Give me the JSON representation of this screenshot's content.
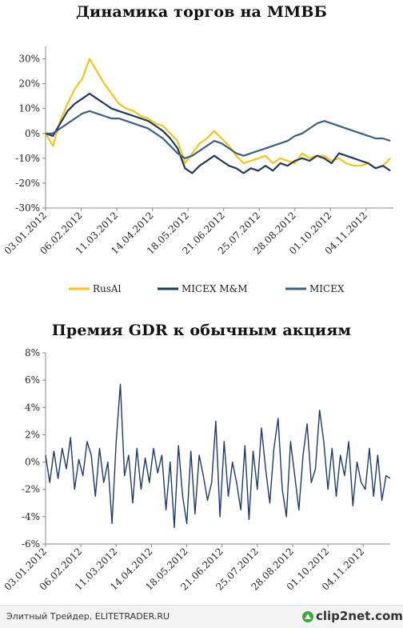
{
  "chart_data": [
    {
      "type": "line",
      "title": "Динамика торгов на ММВБ",
      "x_ticks": [
        "03.01.2012",
        "06.02.2012",
        "11.03.2012",
        "14.04.2012",
        "18.05.2012",
        "21.06.2012",
        "25.07.2012",
        "28.08.2012",
        "01.10.2012",
        "04.11.2012"
      ],
      "y_ticks": [
        "30%",
        "20%",
        "10%",
        "0%",
        "-10%",
        "-20%",
        "-30%"
      ],
      "ylim": [
        -30,
        35
      ],
      "x_range": [
        "2012-01-03",
        "2012-11-30"
      ],
      "grid": false,
      "legend_position": "bottom",
      "series": [
        {
          "name": "RusAl",
          "color": "#f5c518",
          "x": [
            "2012-01-03",
            "2012-01-10",
            "2012-01-17",
            "2012-01-24",
            "2012-01-31",
            "2012-02-07",
            "2012-02-14",
            "2012-02-21",
            "2012-02-28",
            "2012-03-06",
            "2012-03-13",
            "2012-03-20",
            "2012-03-27",
            "2012-04-03",
            "2012-04-10",
            "2012-04-17",
            "2012-04-24",
            "2012-05-01",
            "2012-05-08",
            "2012-05-15",
            "2012-05-22",
            "2012-05-29",
            "2012-06-05",
            "2012-06-12",
            "2012-06-19",
            "2012-06-26",
            "2012-07-03",
            "2012-07-10",
            "2012-07-17",
            "2012-07-24",
            "2012-07-31",
            "2012-08-07",
            "2012-08-14",
            "2012-08-21",
            "2012-08-28",
            "2012-09-04",
            "2012-09-11",
            "2012-09-18",
            "2012-09-25",
            "2012-10-02",
            "2012-10-09",
            "2012-10-16",
            "2012-10-23",
            "2012-10-30",
            "2012-11-06",
            "2012-11-13",
            "2012-11-20",
            "2012-11-27"
          ],
          "values": [
            0,
            -5,
            5,
            12,
            18,
            22,
            30,
            25,
            20,
            16,
            12,
            10,
            9,
            7,
            6,
            4,
            3,
            0,
            -3,
            -12,
            -8,
            -4,
            -2,
            1,
            -2,
            -5,
            -9,
            -12,
            -11,
            -10,
            -9,
            -12,
            -10,
            -11,
            -12,
            -8,
            -10,
            -9,
            -9,
            -11,
            -10,
            -12,
            -13,
            -13,
            -12,
            -14,
            -13,
            -10
          ]
        },
        {
          "name": "MICEX M&M",
          "color": "#1f3a5a",
          "x": [
            "2012-01-03",
            "2012-01-10",
            "2012-01-17",
            "2012-01-24",
            "2012-01-31",
            "2012-02-07",
            "2012-02-14",
            "2012-02-21",
            "2012-02-28",
            "2012-03-06",
            "2012-03-13",
            "2012-03-20",
            "2012-03-27",
            "2012-04-03",
            "2012-04-10",
            "2012-04-17",
            "2012-04-24",
            "2012-05-01",
            "2012-05-08",
            "2012-05-15",
            "2012-05-22",
            "2012-05-29",
            "2012-06-05",
            "2012-06-12",
            "2012-06-19",
            "2012-06-26",
            "2012-07-03",
            "2012-07-10",
            "2012-07-17",
            "2012-07-24",
            "2012-07-31",
            "2012-08-07",
            "2012-08-14",
            "2012-08-21",
            "2012-08-28",
            "2012-09-04",
            "2012-09-11",
            "2012-09-18",
            "2012-09-25",
            "2012-10-02",
            "2012-10-09",
            "2012-10-16",
            "2012-10-23",
            "2012-10-30",
            "2012-11-06",
            "2012-11-13",
            "2012-11-20",
            "2012-11-27"
          ],
          "values": [
            0,
            -1,
            4,
            9,
            12,
            14,
            16,
            14,
            12,
            10,
            9,
            8,
            7,
            6,
            5,
            3,
            1,
            -2,
            -6,
            -14,
            -16,
            -13,
            -11,
            -9,
            -11,
            -13,
            -14,
            -16,
            -14,
            -15,
            -13,
            -15,
            -12,
            -13,
            -11,
            -10,
            -11,
            -9,
            -10,
            -12,
            -8,
            -9,
            -10,
            -11,
            -12,
            -14,
            -13,
            -15
          ]
        },
        {
          "name": "MICEX",
          "color": "#3e5f82",
          "x": [
            "2012-01-03",
            "2012-01-10",
            "2012-01-17",
            "2012-01-24",
            "2012-01-31",
            "2012-02-07",
            "2012-02-14",
            "2012-02-21",
            "2012-02-28",
            "2012-03-06",
            "2012-03-13",
            "2012-03-20",
            "2012-03-27",
            "2012-04-03",
            "2012-04-10",
            "2012-04-17",
            "2012-04-24",
            "2012-05-01",
            "2012-05-08",
            "2012-05-15",
            "2012-05-22",
            "2012-05-29",
            "2012-06-05",
            "2012-06-12",
            "2012-06-19",
            "2012-06-26",
            "2012-07-03",
            "2012-07-10",
            "2012-07-17",
            "2012-07-24",
            "2012-07-31",
            "2012-08-07",
            "2012-08-14",
            "2012-08-21",
            "2012-08-28",
            "2012-09-04",
            "2012-09-11",
            "2012-09-18",
            "2012-09-25",
            "2012-10-02",
            "2012-10-09",
            "2012-10-16",
            "2012-10-23",
            "2012-10-30",
            "2012-11-06",
            "2012-11-13",
            "2012-11-20",
            "2012-11-27"
          ],
          "values": [
            0,
            0,
            2,
            4,
            6,
            8,
            9,
            8,
            7,
            6,
            6,
            5,
            4,
            3,
            2,
            0,
            -2,
            -5,
            -8,
            -10,
            -9,
            -7,
            -5,
            -3,
            -4,
            -6,
            -8,
            -9,
            -8,
            -7,
            -6,
            -5,
            -4,
            -3,
            -1,
            0,
            2,
            4,
            5,
            4,
            3,
            2,
            1,
            0,
            -1,
            -2,
            -2,
            -3
          ]
        }
      ]
    },
    {
      "type": "line",
      "title": "Премия GDR к обычным акциям",
      "x_ticks": [
        "03.01.2012",
        "06.02.2012",
        "11.03.2012",
        "14.04.2012",
        "18.05.2012",
        "21.06.2012",
        "25.07.2012",
        "28.08.2012",
        "01.10.2012",
        "04.11.2012"
      ],
      "y_ticks": [
        "8%",
        "6%",
        "4%",
        "2%",
        "0%",
        "-2%",
        "-4%",
        "-6%"
      ],
      "ylim": [
        -6,
        8
      ],
      "x_range": [
        "2012-01-03",
        "2012-11-30"
      ],
      "grid": false,
      "legend_position": "none",
      "series": [
        {
          "color": "#1f3a6e",
          "x": [
            "2012-01-03",
            "2012-01-07",
            "2012-01-11",
            "2012-01-15",
            "2012-01-19",
            "2012-01-23",
            "2012-01-27",
            "2012-01-31",
            "2012-02-04",
            "2012-02-08",
            "2012-02-12",
            "2012-02-16",
            "2012-02-20",
            "2012-02-24",
            "2012-02-28",
            "2012-03-03",
            "2012-03-07",
            "2012-03-11",
            "2012-03-15",
            "2012-03-19",
            "2012-03-23",
            "2012-03-27",
            "2012-03-31",
            "2012-04-04",
            "2012-04-08",
            "2012-04-12",
            "2012-04-16",
            "2012-04-20",
            "2012-04-24",
            "2012-04-28",
            "2012-05-02",
            "2012-05-06",
            "2012-05-10",
            "2012-05-14",
            "2012-05-18",
            "2012-05-22",
            "2012-05-26",
            "2012-05-30",
            "2012-06-03",
            "2012-06-07",
            "2012-06-11",
            "2012-06-15",
            "2012-06-19",
            "2012-06-23",
            "2012-06-27",
            "2012-07-01",
            "2012-07-05",
            "2012-07-09",
            "2012-07-13",
            "2012-07-17",
            "2012-07-21",
            "2012-07-25",
            "2012-07-29",
            "2012-08-02",
            "2012-08-06",
            "2012-08-10",
            "2012-08-14",
            "2012-08-18",
            "2012-08-22",
            "2012-08-26",
            "2012-08-30",
            "2012-09-03",
            "2012-09-07",
            "2012-09-11",
            "2012-09-15",
            "2012-09-19",
            "2012-09-23",
            "2012-09-27",
            "2012-10-01",
            "2012-10-05",
            "2012-10-09",
            "2012-10-13",
            "2012-10-17",
            "2012-10-21",
            "2012-10-25",
            "2012-10-29",
            "2012-11-02",
            "2012-11-06",
            "2012-11-10",
            "2012-11-14",
            "2012-11-18",
            "2012-11-22",
            "2012-11-26",
            "2012-11-30"
          ],
          "values": [
            0.5,
            -1.5,
            0.8,
            -1.2,
            1.0,
            -0.5,
            1.8,
            -2.0,
            0.2,
            -1.0,
            1.5,
            0.5,
            -2.5,
            1.0,
            -1.5,
            0.0,
            -4.5,
            1.5,
            5.7,
            -1.0,
            0.5,
            -3.0,
            1.0,
            -2.0,
            0.3,
            -1.5,
            1.0,
            -0.8,
            0.5,
            -3.5,
            0.0,
            -4.8,
            1.2,
            -2.5,
            -4.5,
            0.8,
            -3.8,
            0.5,
            -1.0,
            -2.8,
            -1.5,
            3.0,
            -4.0,
            1.5,
            -2.5,
            0.0,
            -1.5,
            -3.5,
            1.2,
            -4.2,
            0.8,
            -2.0,
            2.5,
            -0.5,
            -3.0,
            1.0,
            3.2,
            -2.0,
            -4.0,
            1.5,
            -1.0,
            -3.5,
            0.5,
            2.8,
            -1.5,
            -0.5,
            3.8,
            1.5,
            -2.0,
            1.0,
            -2.5,
            0.5,
            -1.0,
            1.5,
            -3.2,
            0.0,
            -1.5,
            -2.0,
            1.0,
            -2.5,
            0.5,
            -2.8,
            -1.0,
            -1.2
          ]
        }
      ]
    }
  ],
  "footer": {
    "text": "Элитный Трейдер, ELITETRADER.RU",
    "logo": "clip2net.com"
  }
}
